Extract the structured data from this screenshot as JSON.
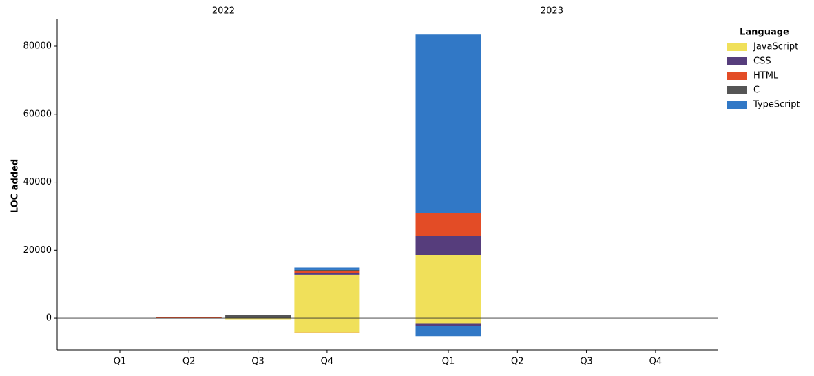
{
  "chart_data": {
    "type": "bar",
    "stacked": true,
    "y_label": "LOC added",
    "legend_title": "Language",
    "legend_position": "upper right",
    "groups": [
      "2022",
      "2023"
    ],
    "categories": [
      "Q1",
      "Q2",
      "Q3",
      "Q4",
      "Q1",
      "Q2",
      "Q3",
      "Q4"
    ],
    "series": [
      {
        "name": "JavaScript",
        "color": "#f0e05a",
        "values": [
          0,
          0,
          0,
          12800,
          18600,
          0,
          0,
          0
        ],
        "removed": [
          0,
          0,
          -300,
          -4200,
          -1500,
          0,
          0,
          0
        ]
      },
      {
        "name": "CSS",
        "color": "#563d7c",
        "values": [
          0,
          0,
          0,
          400,
          5600,
          0,
          0,
          0
        ],
        "removed": [
          0,
          0,
          0,
          0,
          -800,
          0,
          0,
          0
        ]
      },
      {
        "name": "HTML",
        "color": "#e34c26",
        "values": [
          0,
          400,
          0,
          700,
          6600,
          0,
          0,
          0
        ],
        "removed": [
          0,
          0,
          0,
          -100,
          0,
          0,
          0,
          0
        ]
      },
      {
        "name": "C",
        "color": "#555555",
        "values": [
          0,
          0,
          1000,
          300,
          0,
          0,
          0,
          0
        ],
        "removed": [
          0,
          0,
          0,
          0,
          0,
          0,
          0,
          0
        ]
      },
      {
        "name": "TypeScript",
        "color": "#3178c6",
        "values": [
          0,
          0,
          0,
          700,
          52600,
          0,
          0,
          0
        ],
        "removed": [
          0,
          0,
          0,
          0,
          -3000,
          0,
          0,
          0
        ]
      }
    ],
    "ylim": [
      -9300,
      87900
    ],
    "yticks": [
      0,
      20000,
      40000,
      60000,
      80000
    ],
    "zero_line": true
  }
}
